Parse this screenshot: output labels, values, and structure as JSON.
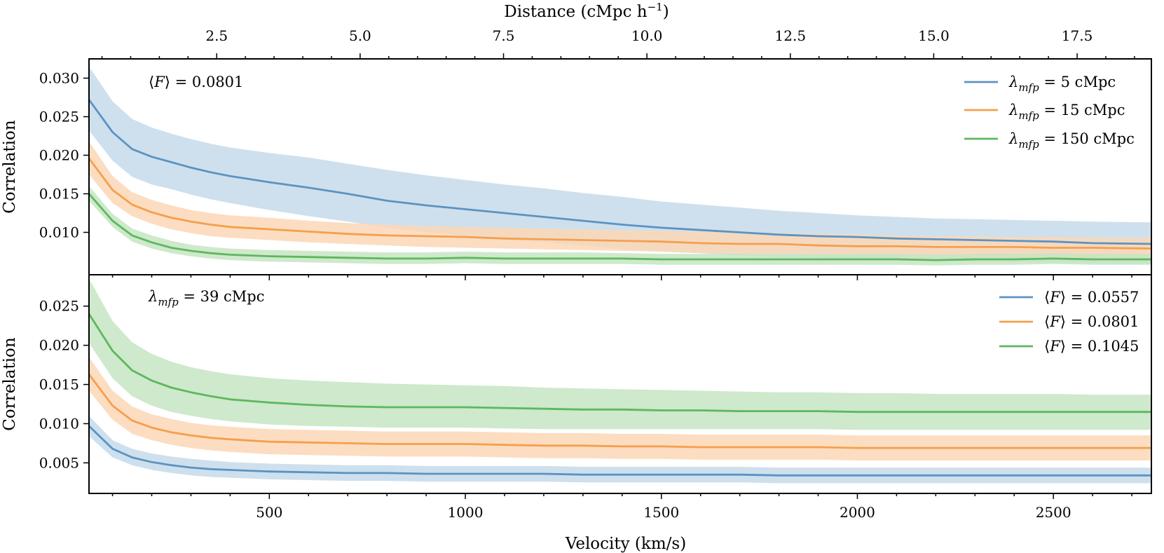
{
  "chart_data": [
    {
      "type": "line",
      "panel": "top",
      "ylabel": "Correlation",
      "xlabel": "",
      "xlim": [
        40,
        2750
      ],
      "ylim": [
        0.0045,
        0.0325
      ],
      "yticks": [
        0.01,
        0.015,
        0.02,
        0.025,
        0.03
      ],
      "ytick_labels": [
        "0.010",
        "0.015",
        "0.020",
        "0.025",
        "0.030"
      ],
      "secondary_xaxis": {
        "label": "Distance (cMpc h",
        "label_sup": "−1",
        "label_close": ")",
        "ticks": [
          2.5,
          5.0,
          7.5,
          10.0,
          12.5,
          15.0,
          17.5
        ],
        "tick_labels": [
          "2.5",
          "5.0",
          "7.5",
          "10.0",
          "12.5",
          "15.0",
          "17.5"
        ],
        "minor_step": 0.5,
        "km_s_per_unit": 146.32
      },
      "annotation": {
        "prefix": "⟨",
        "var": "F",
        "suffix": "⟩ = 0.0801"
      },
      "legend_position": "top-right",
      "x": [
        40,
        100,
        150,
        200,
        250,
        300,
        350,
        400,
        500,
        600,
        700,
        800,
        900,
        1000,
        1100,
        1200,
        1300,
        1400,
        1500,
        1600,
        1700,
        1800,
        1900,
        2000,
        2100,
        2200,
        2300,
        2400,
        2500,
        2600,
        2750
      ],
      "series": [
        {
          "legend_prefix": "λ",
          "legend_sub": "mfp",
          "legend_suffix": " = 5 cMpc",
          "color": "#5b93c2",
          "fill": "#c6daea",
          "values": [
            0.0272,
            0.023,
            0.0208,
            0.0198,
            0.0191,
            0.0184,
            0.0178,
            0.0173,
            0.0165,
            0.0158,
            0.015,
            0.0141,
            0.0135,
            0.013,
            0.0125,
            0.012,
            0.0115,
            0.011,
            0.0106,
            0.0103,
            0.01,
            0.0097,
            0.0095,
            0.0094,
            0.0092,
            0.0091,
            0.009,
            0.0089,
            0.0088,
            0.0086,
            0.0085
          ],
          "upper": [
            0.0315,
            0.027,
            0.0247,
            0.0236,
            0.0228,
            0.0221,
            0.0215,
            0.021,
            0.0203,
            0.0197,
            0.0189,
            0.0181,
            0.0174,
            0.0168,
            0.0162,
            0.0157,
            0.0151,
            0.0146,
            0.014,
            0.0136,
            0.0132,
            0.0128,
            0.0125,
            0.0122,
            0.012,
            0.0118,
            0.0117,
            0.0116,
            0.0115,
            0.0114,
            0.0113
          ],
          "lower": [
            0.0232,
            0.0193,
            0.0172,
            0.0162,
            0.0156,
            0.0149,
            0.0143,
            0.0138,
            0.0129,
            0.0121,
            0.0114,
            0.0106,
            0.01,
            0.0095,
            0.0091,
            0.0087,
            0.0083,
            0.0078,
            0.0075,
            0.0073,
            0.007,
            0.0068,
            0.0067,
            0.0066,
            0.0064,
            0.0063,
            0.0062,
            0.0062,
            0.0061,
            0.006,
            0.0059
          ]
        },
        {
          "legend_prefix": "λ",
          "legend_sub": "mfp",
          "legend_suffix": " = 15 cMpc",
          "color": "#f59f4d",
          "fill": "#fcd7b6",
          "values": [
            0.0196,
            0.0155,
            0.0136,
            0.0126,
            0.0119,
            0.0114,
            0.011,
            0.0107,
            0.0104,
            0.0101,
            0.0098,
            0.0096,
            0.0095,
            0.0094,
            0.0092,
            0.0091,
            0.009,
            0.0089,
            0.0088,
            0.0086,
            0.0085,
            0.0085,
            0.0083,
            0.0082,
            0.0082,
            0.0081,
            0.0081,
            0.0081,
            0.008,
            0.008,
            0.0079
          ],
          "upper": [
            0.0218,
            0.0173,
            0.0152,
            0.0142,
            0.0135,
            0.0129,
            0.0125,
            0.0122,
            0.0119,
            0.0115,
            0.0112,
            0.011,
            0.0108,
            0.0107,
            0.0106,
            0.0105,
            0.0104,
            0.0103,
            0.0102,
            0.0101,
            0.01,
            0.0099,
            0.0098,
            0.0097,
            0.0096,
            0.0095,
            0.0095,
            0.0094,
            0.0094,
            0.0093,
            0.0093
          ],
          "lower": [
            0.0175,
            0.0138,
            0.0121,
            0.0111,
            0.0104,
            0.0099,
            0.0095,
            0.0093,
            0.009,
            0.0087,
            0.0085,
            0.0083,
            0.0081,
            0.008,
            0.0079,
            0.0078,
            0.0077,
            0.0076,
            0.0075,
            0.0073,
            0.0072,
            0.0071,
            0.007,
            0.0069,
            0.0068,
            0.0067,
            0.0067,
            0.0066,
            0.0066,
            0.0065,
            0.0065
          ]
        },
        {
          "legend_prefix": "λ",
          "legend_sub": "mfp",
          "legend_suffix": " = 150 cMpc",
          "color": "#5db85d",
          "fill": "#c5e5c2",
          "values": [
            0.015,
            0.0115,
            0.0096,
            0.0087,
            0.008,
            0.0076,
            0.0073,
            0.0071,
            0.0069,
            0.0068,
            0.0067,
            0.0066,
            0.0066,
            0.0067,
            0.0066,
            0.0066,
            0.0066,
            0.0066,
            0.0065,
            0.0065,
            0.0065,
            0.0065,
            0.0065,
            0.0065,
            0.0065,
            0.0064,
            0.0065,
            0.0065,
            0.0066,
            0.0065,
            0.0065
          ],
          "upper": [
            0.016,
            0.0124,
            0.0105,
            0.0096,
            0.0089,
            0.0084,
            0.0081,
            0.0079,
            0.0077,
            0.0076,
            0.0075,
            0.0074,
            0.0074,
            0.0075,
            0.0074,
            0.0074,
            0.0074,
            0.0073,
            0.0072,
            0.0072,
            0.0072,
            0.0072,
            0.0072,
            0.0072,
            0.0072,
            0.0071,
            0.0072,
            0.0072,
            0.0073,
            0.0072,
            0.0072
          ],
          "lower": [
            0.0141,
            0.0107,
            0.0088,
            0.0079,
            0.0073,
            0.0069,
            0.0066,
            0.0064,
            0.0062,
            0.0061,
            0.006,
            0.0059,
            0.0059,
            0.006,
            0.0059,
            0.0059,
            0.0059,
            0.0059,
            0.0058,
            0.0058,
            0.0058,
            0.0058,
            0.0058,
            0.0058,
            0.0058,
            0.0057,
            0.0058,
            0.0058,
            0.0059,
            0.0058,
            0.0058
          ]
        }
      ]
    },
    {
      "type": "line",
      "panel": "bottom",
      "ylabel": "Correlation",
      "xlabel": "Velocity (km/s)",
      "xlim": [
        40,
        2750
      ],
      "ylim": [
        0.0011,
        0.029
      ],
      "xticks": [
        500,
        1000,
        1500,
        2000,
        2500
      ],
      "xtick_labels": [
        "500",
        "1000",
        "1500",
        "2000",
        "2500"
      ],
      "x_minor_step": 100,
      "yticks": [
        0.005,
        0.01,
        0.015,
        0.02,
        0.025
      ],
      "ytick_labels": [
        "0.005",
        "0.010",
        "0.015",
        "0.020",
        "0.025"
      ],
      "annotation": {
        "prefix": "λ",
        "sub": "mfp",
        "suffix": " = 39 cMpc"
      },
      "legend_position": "top-right",
      "x": [
        40,
        100,
        150,
        200,
        250,
        300,
        350,
        400,
        500,
        600,
        700,
        800,
        900,
        1000,
        1100,
        1200,
        1300,
        1400,
        1500,
        1600,
        1700,
        1800,
        1900,
        2000,
        2100,
        2200,
        2300,
        2400,
        2500,
        2600,
        2750
      ],
      "series": [
        {
          "legend_prefix": "⟨",
          "legend_var": "F",
          "legend_suffix": "⟩ = 0.0557",
          "color": "#5b93c2",
          "fill": "#c6daea",
          "values": [
            0.0097,
            0.0068,
            0.0057,
            0.0051,
            0.0047,
            0.0044,
            0.0042,
            0.0041,
            0.0039,
            0.0038,
            0.0037,
            0.0037,
            0.0036,
            0.0036,
            0.0036,
            0.0036,
            0.0035,
            0.0035,
            0.0035,
            0.0035,
            0.0035,
            0.0034,
            0.0034,
            0.0034,
            0.0034,
            0.0034,
            0.0034,
            0.0034,
            0.0034,
            0.0034,
            0.0034
          ],
          "upper": [
            0.011,
            0.0079,
            0.0068,
            0.0062,
            0.0058,
            0.0055,
            0.0053,
            0.0051,
            0.0049,
            0.0048,
            0.0047,
            0.0047,
            0.0046,
            0.0046,
            0.0046,
            0.0046,
            0.0045,
            0.0045,
            0.0045,
            0.0045,
            0.0045,
            0.0044,
            0.0044,
            0.0044,
            0.0044,
            0.0044,
            0.0044,
            0.0044,
            0.0044,
            0.0044,
            0.0044
          ],
          "lower": [
            0.0084,
            0.0057,
            0.0047,
            0.0041,
            0.0037,
            0.0034,
            0.0032,
            0.0031,
            0.0029,
            0.0028,
            0.0027,
            0.0027,
            0.0026,
            0.0026,
            0.0026,
            0.0026,
            0.0025,
            0.0025,
            0.0025,
            0.0025,
            0.0025,
            0.0024,
            0.0024,
            0.0024,
            0.0024,
            0.0024,
            0.0024,
            0.0024,
            0.0024,
            0.0024,
            0.0024
          ]
        },
        {
          "legend_prefix": "⟨",
          "legend_var": "F",
          "legend_suffix": "⟩ = 0.0801",
          "color": "#f59f4d",
          "fill": "#fcd7b6",
          "values": [
            0.0163,
            0.0123,
            0.0104,
            0.0095,
            0.0089,
            0.0085,
            0.0082,
            0.008,
            0.0077,
            0.0076,
            0.0075,
            0.0074,
            0.0074,
            0.0074,
            0.0073,
            0.0072,
            0.0072,
            0.0071,
            0.0071,
            0.007,
            0.007,
            0.007,
            0.007,
            0.0069,
            0.0069,
            0.0069,
            0.0069,
            0.0069,
            0.0069,
            0.0069,
            0.0069
          ],
          "upper": [
            0.0185,
            0.0142,
            0.0122,
            0.0112,
            0.0106,
            0.0101,
            0.0098,
            0.0096,
            0.0093,
            0.0092,
            0.0091,
            0.009,
            0.009,
            0.009,
            0.0089,
            0.0088,
            0.0088,
            0.0087,
            0.0087,
            0.0086,
            0.0086,
            0.0086,
            0.0086,
            0.0085,
            0.0085,
            0.0085,
            0.0085,
            0.0085,
            0.0085,
            0.0085,
            0.0085
          ],
          "lower": [
            0.0142,
            0.0105,
            0.0087,
            0.0079,
            0.0073,
            0.0069,
            0.0066,
            0.0064,
            0.0061,
            0.006,
            0.0059,
            0.0058,
            0.0058,
            0.0058,
            0.0057,
            0.0056,
            0.0056,
            0.0055,
            0.0055,
            0.0054,
            0.0054,
            0.0054,
            0.0054,
            0.0053,
            0.0053,
            0.0053,
            0.0053,
            0.0053,
            0.0053,
            0.0053,
            0.0053
          ]
        },
        {
          "legend_prefix": "⟨",
          "legend_var": "F",
          "legend_suffix": "⟩ = 0.1045",
          "color": "#5db85d",
          "fill": "#c5e5c2",
          "values": [
            0.024,
            0.0193,
            0.0168,
            0.0155,
            0.0146,
            0.014,
            0.0135,
            0.0131,
            0.0127,
            0.0124,
            0.0122,
            0.0121,
            0.0121,
            0.0121,
            0.012,
            0.0119,
            0.0118,
            0.0118,
            0.0117,
            0.0117,
            0.0116,
            0.0116,
            0.0116,
            0.0115,
            0.0115,
            0.0115,
            0.0115,
            0.0115,
            0.0115,
            0.0115,
            0.0115
          ],
          "upper": [
            0.0285,
            0.0231,
            0.0204,
            0.0189,
            0.0179,
            0.0172,
            0.0167,
            0.0163,
            0.0158,
            0.0155,
            0.0153,
            0.0151,
            0.015,
            0.0149,
            0.0148,
            0.0146,
            0.0145,
            0.0144,
            0.0143,
            0.0142,
            0.0141,
            0.014,
            0.014,
            0.0139,
            0.0139,
            0.0138,
            0.0138,
            0.0138,
            0.0138,
            0.0137,
            0.0137
          ],
          "lower": [
            0.0203,
            0.0158,
            0.0135,
            0.0123,
            0.0115,
            0.011,
            0.0106,
            0.0103,
            0.0099,
            0.0097,
            0.0096,
            0.0095,
            0.0095,
            0.0095,
            0.0094,
            0.0093,
            0.0093,
            0.0093,
            0.0093,
            0.0093,
            0.0093,
            0.0093,
            0.0093,
            0.0092,
            0.0092,
            0.0092,
            0.0092,
            0.0092,
            0.0092,
            0.0092,
            0.0092
          ]
        }
      ]
    }
  ]
}
